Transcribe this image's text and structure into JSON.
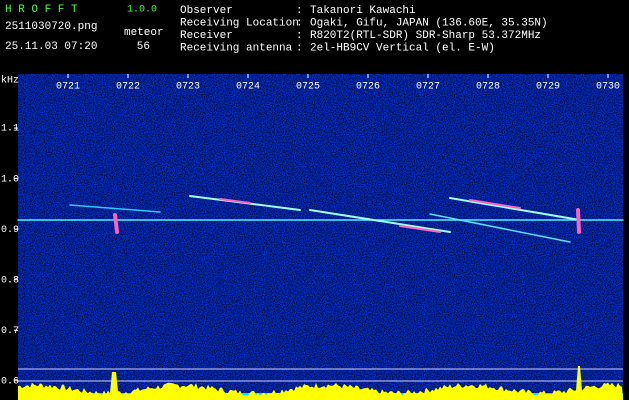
{
  "header": {
    "app": "H R O F F T",
    "version": "1.0.0",
    "file": "2511030720.png",
    "datetime": "25.11.03 07:20",
    "count_label": "meteor",
    "count": 56,
    "info": [
      {
        "label": "Observer",
        "sep": ":",
        "value": "Takanori Kawachi"
      },
      {
        "label": "Receiving Location",
        "sep": ":",
        "value": "Ogaki, Gifu, JAPAN (136.60E, 35.35N)"
      },
      {
        "label": "Receiver",
        "sep": ":",
        "value": "R820T2(RTL-SDR) SDR-Sharp 53.372MHz"
      },
      {
        "label": "Receiving antenna",
        "sep": ":",
        "value": "2el-HB9CV Vertical (el. E-W)"
      }
    ]
  },
  "spectrogram": {
    "unit": "kHz",
    "ylim": [
      0.562,
      1.207
    ],
    "yticks": [
      1.1,
      {
        "value": 1.0,
        "label": "1.0"
      },
      0.9,
      0.8,
      0.7,
      0.6
    ],
    "times": [
      "0721",
      "0722",
      "0723",
      "0724",
      "0725",
      "0726",
      "0727",
      "0728",
      "0729",
      "0730"
    ]
  }
}
